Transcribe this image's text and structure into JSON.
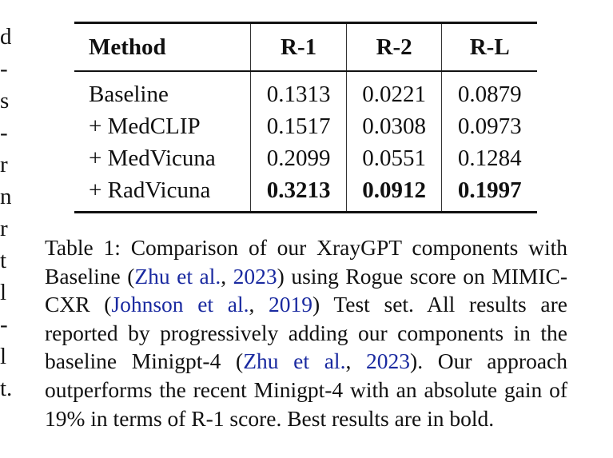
{
  "left_margin_fragments": [
    "d",
    "-",
    "s",
    "-",
    "r",
    "n",
    "r",
    "t",
    "l",
    "-",
    "l",
    "t."
  ],
  "table": {
    "headers": [
      "Method",
      "R-1",
      "R-2",
      "R-L"
    ],
    "rows": [
      {
        "method": "Baseline",
        "r1": "0.1313",
        "r2": "0.0221",
        "rl": "0.0879",
        "bold": false
      },
      {
        "method": "+ MedCLIP",
        "r1": "0.1517",
        "r2": "0.0308",
        "rl": "0.0973",
        "bold": false
      },
      {
        "method": "+ MedVicuna",
        "r1": "0.2099",
        "r2": "0.0551",
        "rl": "0.1284",
        "bold": false
      },
      {
        "method": "+ RadVicuna",
        "r1": "0.3213",
        "r2": "0.0912",
        "rl": "0.1997",
        "bold": true
      }
    ]
  },
  "caption": {
    "p1": "Table 1:  Comparison of our XrayGPT components with Baseline (",
    "cite1_author": "Zhu et al.",
    "cite1_sep": ", ",
    "cite1_year": "2023",
    "p2": ") using Rogue score on MIMIC-CXR (",
    "cite2_author": "Johnson et al.",
    "cite2_sep": ", ",
    "cite2_year": "2019",
    "p3": ") Test set. All results are reported by progressively adding our components in the baseline Minigpt-4 (",
    "cite3_author": "Zhu et al.",
    "cite3_sep": ", ",
    "cite3_year": "2023",
    "p4": "). Our approach outperforms the recent Minigpt-4 with an absolute gain of 19% in terms of R-1 score. Best results are in bold."
  },
  "colors": {
    "citation": "#1a2aa0",
    "text": "#111111"
  }
}
